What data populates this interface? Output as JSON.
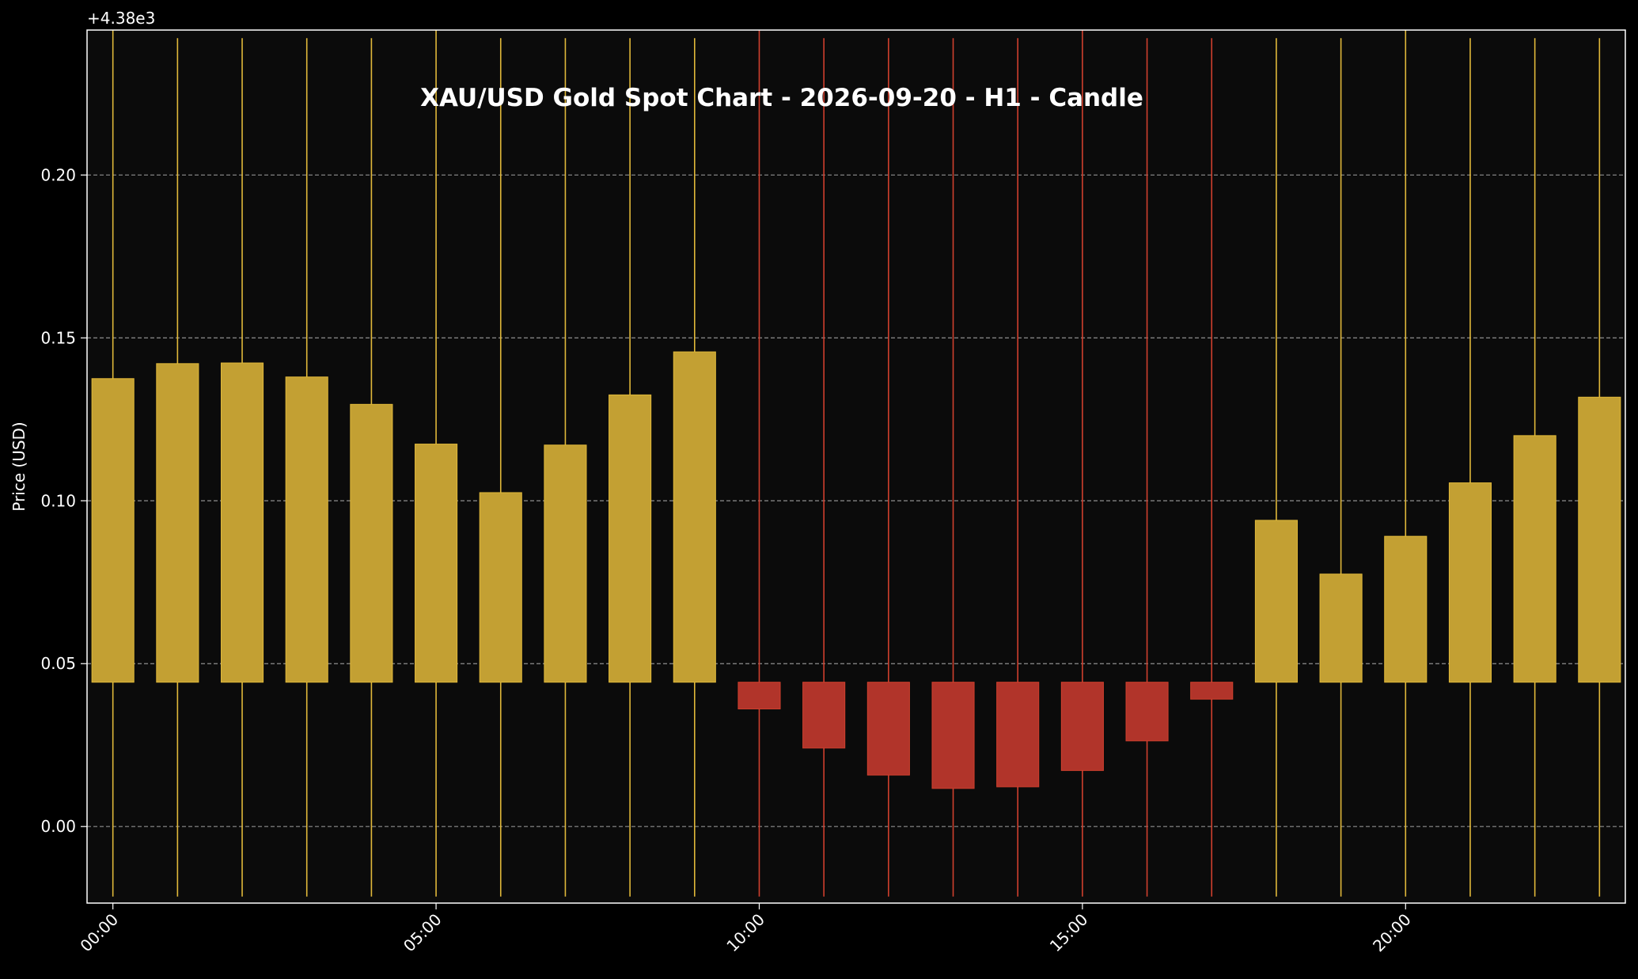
{
  "chart_data": {
    "type": "candlestick",
    "title": "XAU/USD Gold Spot Chart - 2026-09-20 - H1 - Candle",
    "ylabel": "Price (USD)",
    "xlabel": "",
    "offset_label": "+4.38e3",
    "ylim": [
      -0.0235,
      0.2445
    ],
    "yticks": [
      0.0,
      0.05,
      0.1,
      0.15,
      0.2
    ],
    "ytick_labels": [
      "0.00",
      "0.05",
      "0.10",
      "0.15",
      "0.20"
    ],
    "xticks": [
      0,
      5,
      10,
      15,
      20
    ],
    "xtick_labels": [
      "00:00",
      "05:00",
      "10:00",
      "15:00",
      "20:00"
    ],
    "grid": "horizontal-dashed",
    "colors": {
      "background": "#000000",
      "plot_background": "#0b0b0b",
      "up": "#c3a033",
      "up_edge": "#e0b83a",
      "down": "#b1342a",
      "down_edge": "#d0402e",
      "text": "#ffffff",
      "grid": "#bbbbbb"
    },
    "candles": [
      {
        "time": "00:00",
        "open": 0.0443,
        "close": 0.1375,
        "high": 0.2445,
        "low": -0.0215
      },
      {
        "time": "01:00",
        "open": 0.0443,
        "close": 0.1421,
        "high": 0.242,
        "low": -0.0215
      },
      {
        "time": "02:00",
        "open": 0.0443,
        "close": 0.1423,
        "high": 0.242,
        "low": -0.0215
      },
      {
        "time": "03:00",
        "open": 0.0443,
        "close": 0.138,
        "high": 0.242,
        "low": -0.0215
      },
      {
        "time": "04:00",
        "open": 0.0443,
        "close": 0.1296,
        "high": 0.242,
        "low": -0.0215
      },
      {
        "time": "05:00",
        "open": 0.0443,
        "close": 0.1174,
        "high": 0.2445,
        "low": -0.0215
      },
      {
        "time": "06:00",
        "open": 0.0443,
        "close": 0.1025,
        "high": 0.242,
        "low": -0.0215
      },
      {
        "time": "07:00",
        "open": 0.0443,
        "close": 0.1171,
        "high": 0.242,
        "low": -0.0215
      },
      {
        "time": "08:00",
        "open": 0.0443,
        "close": 0.1325,
        "high": 0.242,
        "low": -0.0215
      },
      {
        "time": "09:00",
        "open": 0.0443,
        "close": 0.1457,
        "high": 0.242,
        "low": -0.0215
      },
      {
        "time": "10:00",
        "open": 0.0443,
        "close": 0.0361,
        "high": 0.2445,
        "low": -0.0215
      },
      {
        "time": "11:00",
        "open": 0.0443,
        "close": 0.0241,
        "high": 0.242,
        "low": -0.0215
      },
      {
        "time": "12:00",
        "open": 0.0443,
        "close": 0.0158,
        "high": 0.242,
        "low": -0.0215
      },
      {
        "time": "13:00",
        "open": 0.0443,
        "close": 0.0117,
        "high": 0.242,
        "low": -0.0215
      },
      {
        "time": "14:00",
        "open": 0.0443,
        "close": 0.0122,
        "high": 0.242,
        "low": -0.0215
      },
      {
        "time": "15:00",
        "open": 0.0443,
        "close": 0.0172,
        "high": 0.2445,
        "low": -0.0215
      },
      {
        "time": "16:00",
        "open": 0.0443,
        "close": 0.0263,
        "high": 0.242,
        "low": -0.0215
      },
      {
        "time": "17:00",
        "open": 0.0443,
        "close": 0.0391,
        "high": 0.242,
        "low": -0.0215
      },
      {
        "time": "18:00",
        "open": 0.0443,
        "close": 0.094,
        "high": 0.242,
        "low": -0.0215
      },
      {
        "time": "19:00",
        "open": 0.0443,
        "close": 0.0775,
        "high": 0.242,
        "low": -0.0215
      },
      {
        "time": "20:00",
        "open": 0.0443,
        "close": 0.0891,
        "high": 0.2445,
        "low": -0.0215
      },
      {
        "time": "21:00",
        "open": 0.0443,
        "close": 0.1055,
        "high": 0.242,
        "low": -0.0215
      },
      {
        "time": "22:00",
        "open": 0.0443,
        "close": 0.12,
        "high": 0.242,
        "low": -0.0215
      },
      {
        "time": "23:00",
        "open": 0.0443,
        "close": 0.1318,
        "high": 0.242,
        "low": -0.0215
      }
    ]
  }
}
